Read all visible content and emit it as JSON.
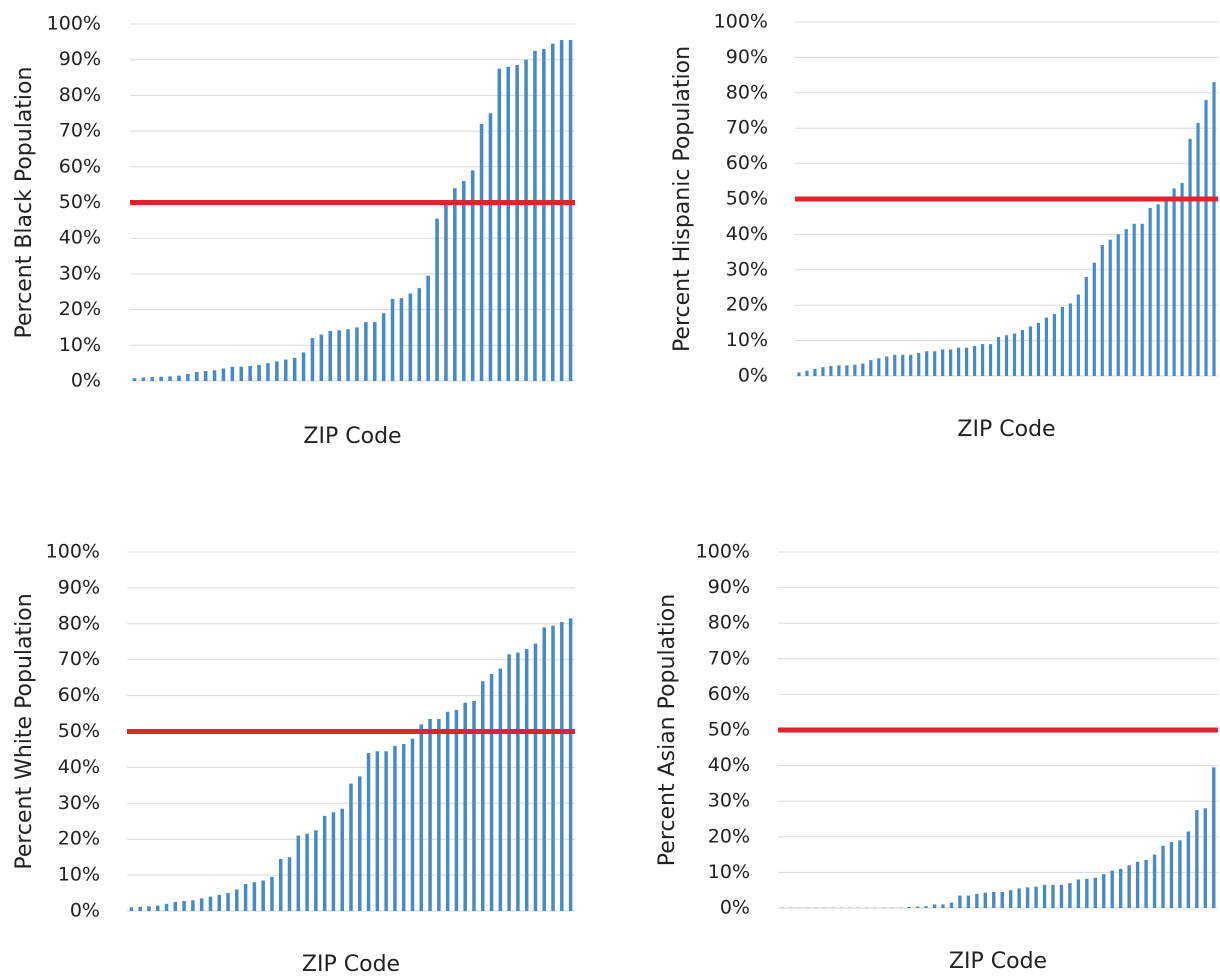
{
  "chart_data": [
    {
      "type": "bar",
      "ylabel": "Percent Black Population",
      "xlabel": "ZIP Code",
      "color": "#4a8ac4",
      "grid": true,
      "reference_line": 50,
      "reference_color": "#e0242b",
      "values": [
        0.8,
        1,
        1.1,
        1.2,
        1.3,
        1.5,
        2,
        2.5,
        2.8,
        3,
        3.5,
        4,
        4,
        4.2,
        4.5,
        5,
        5.5,
        6,
        6.5,
        8,
        12,
        13,
        14,
        14.2,
        14.5,
        15,
        16.5,
        16.5,
        19,
        23,
        23.2,
        24.5,
        26,
        29.5,
        45.5,
        50,
        54,
        56,
        59,
        72,
        75,
        87.5,
        88,
        88.5,
        90,
        92.5,
        93,
        94.5,
        95.5,
        95.5
      ],
      "ylim": [
        0,
        100
      ],
      "yticks": [
        {
          "value": 0,
          "label": "0%"
        },
        {
          "value": 10,
          "label": "10%"
        },
        {
          "value": 20,
          "label": "20%"
        },
        {
          "value": 30,
          "label": "30%"
        },
        {
          "value": 40,
          "label": "40%"
        },
        {
          "value": 50,
          "label": "50%"
        },
        {
          "value": 60,
          "label": "60%"
        },
        {
          "value": 70,
          "label": "70%"
        },
        {
          "value": 80,
          "label": "80%"
        },
        {
          "value": 90,
          "label": "90%"
        },
        {
          "value": 100,
          "label": "100%"
        }
      ]
    },
    {
      "type": "bar",
      "ylabel": "Percent Hispanic Population",
      "xlabel": "ZIP Code",
      "color": "#4a8ac4",
      "grid": true,
      "reference_line": 50,
      "reference_color": "#e0242b",
      "values": [
        1,
        1.5,
        2,
        2.5,
        2.8,
        3,
        3,
        3.2,
        3.5,
        4.5,
        5,
        5.5,
        6,
        6,
        6,
        6.5,
        7,
        7,
        7.5,
        7.5,
        8,
        8,
        8.5,
        9,
        9,
        11,
        11.5,
        12,
        13,
        14,
        15,
        16.5,
        17.5,
        19.5,
        20.5,
        23,
        28,
        32,
        37,
        38.5,
        40,
        41.5,
        43,
        43,
        47.5,
        48.5,
        50,
        53,
        54.5,
        67,
        71.5,
        78,
        83
      ],
      "ylim": [
        0,
        100
      ],
      "yticks": [
        {
          "value": 0,
          "label": "0%"
        },
        {
          "value": 10,
          "label": "10%"
        },
        {
          "value": 20,
          "label": "20%"
        },
        {
          "value": 30,
          "label": "30%"
        },
        {
          "value": 40,
          "label": "40%"
        },
        {
          "value": 50,
          "label": "50%"
        },
        {
          "value": 60,
          "label": "60%"
        },
        {
          "value": 70,
          "label": "70%"
        },
        {
          "value": 80,
          "label": "80%"
        },
        {
          "value": 90,
          "label": "90%"
        },
        {
          "value": 100,
          "label": "100%"
        }
      ]
    },
    {
      "type": "bar",
      "ylabel": "Percent White Population",
      "xlabel": "ZIP Code",
      "color": "#4a8ac4",
      "grid": true,
      "reference_line": 50,
      "reference_color": "#e0242b",
      "values": [
        1,
        1.2,
        1.3,
        1.5,
        2,
        2.5,
        2.8,
        3,
        3.5,
        4,
        4.5,
        5,
        6,
        7.5,
        8,
        8.5,
        9.5,
        14.5,
        15,
        21,
        21.5,
        22.5,
        26.5,
        27.5,
        28.5,
        35.5,
        37.5,
        44,
        44.5,
        44.5,
        46,
        46.5,
        48,
        52,
        53.5,
        53.5,
        55.5,
        56,
        58,
        58.5,
        64,
        66,
        67.5,
        71.5,
        72,
        73,
        74.5,
        79,
        79.5,
        80.5,
        81.5
      ],
      "ylim": [
        0,
        100
      ],
      "yticks": [
        {
          "value": 0,
          "label": "0%"
        },
        {
          "value": 10,
          "label": "10%"
        },
        {
          "value": 20,
          "label": "20%"
        },
        {
          "value": 30,
          "label": "30%"
        },
        {
          "value": 40,
          "label": "40%"
        },
        {
          "value": 50,
          "label": "50%"
        },
        {
          "value": 60,
          "label": "60%"
        },
        {
          "value": 70,
          "label": "70%"
        },
        {
          "value": 80,
          "label": "80%"
        },
        {
          "value": 90,
          "label": "90%"
        },
        {
          "value": 100,
          "label": "100%"
        }
      ]
    },
    {
      "type": "bar",
      "ylabel": "Percent Asian Population",
      "xlabel": "ZIP Code",
      "color": "#4a8ac4",
      "grid": true,
      "reference_line": 50,
      "reference_color": "#e0242b",
      "values": [
        0.1,
        0.1,
        0.1,
        0.1,
        0.1,
        0.1,
        0.1,
        0.1,
        0.1,
        0.1,
        0.1,
        0.1,
        0.1,
        0.1,
        0.1,
        0.3,
        0.4,
        0.5,
        1,
        1,
        1.5,
        3.5,
        3.5,
        4,
        4.3,
        4.5,
        4.5,
        5,
        5.5,
        5.8,
        6,
        6.5,
        6.5,
        6.5,
        7,
        8,
        8.2,
        8.5,
        9.5,
        10.5,
        11,
        12,
        13,
        13.5,
        15,
        17.5,
        18.5,
        19,
        21.5,
        27.5,
        28,
        39.5
      ],
      "ylim": [
        0,
        100
      ],
      "yticks": [
        {
          "value": 0,
          "label": "0%"
        },
        {
          "value": 10,
          "label": "10%"
        },
        {
          "value": 20,
          "label": "20%"
        },
        {
          "value": 30,
          "label": "30%"
        },
        {
          "value": 40,
          "label": "40%"
        },
        {
          "value": 50,
          "label": "50%"
        },
        {
          "value": 60,
          "label": "60%"
        },
        {
          "value": 70,
          "label": "70%"
        },
        {
          "value": 80,
          "label": "80%"
        },
        {
          "value": 90,
          "label": "90%"
        },
        {
          "value": 100,
          "label": "100%"
        }
      ]
    }
  ]
}
